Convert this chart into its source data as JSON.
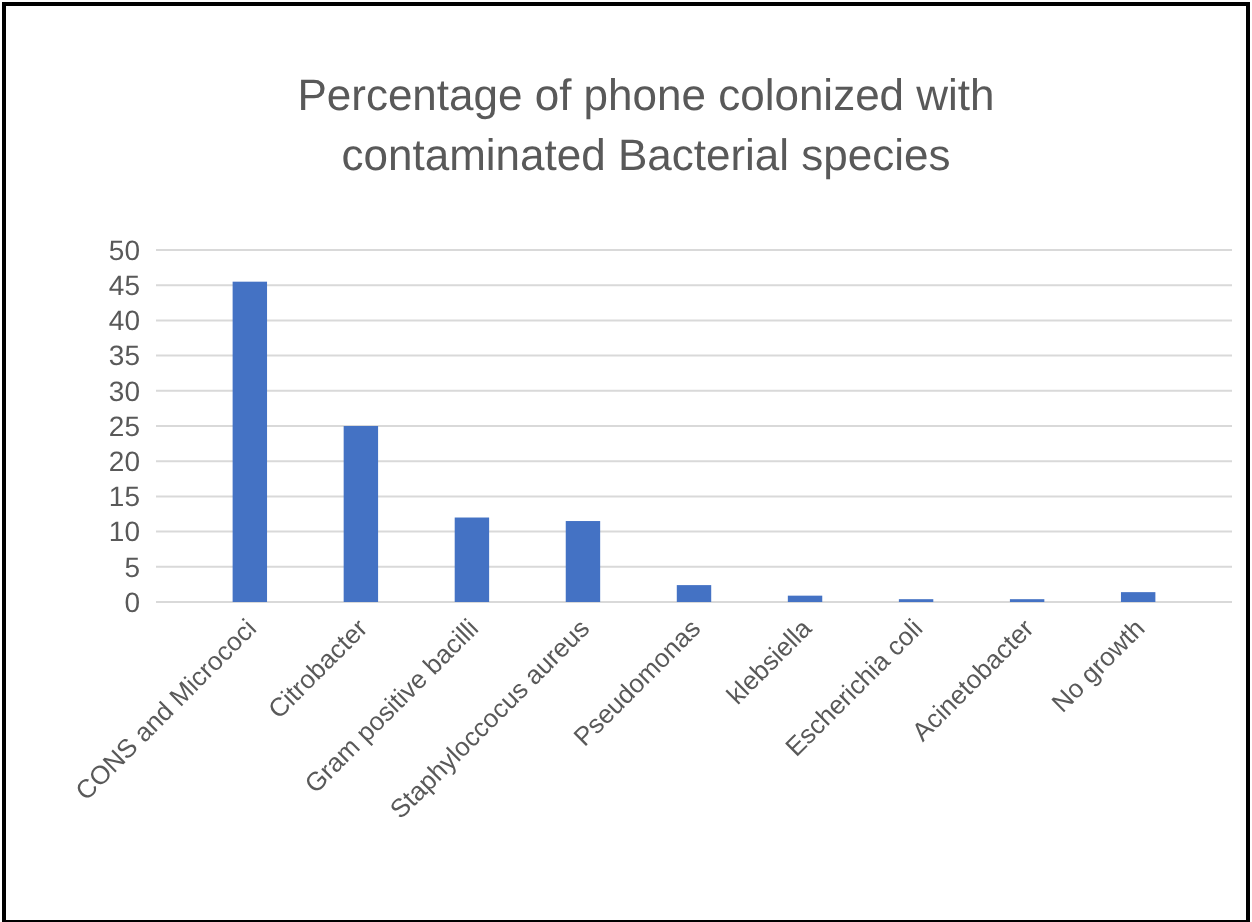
{
  "chart_data": {
    "type": "bar",
    "title": "Percentage of phone colonized with contaminated Bacterial species",
    "categories": [
      "CONS and Micrococi",
      "Citrobacter",
      "Gram positive bacilli",
      "Staphyloccocus aureus",
      "Pseudomonas",
      "klebsiella",
      "Escherichia coli",
      "Acinetobacter",
      "No growth"
    ],
    "values": [
      45.5,
      25,
      12,
      11.5,
      2.4,
      0.9,
      0.4,
      0.4,
      1.4
    ],
    "color": "#4472c4",
    "ylim": [
      0,
      50
    ],
    "yticks": [
      0,
      5,
      10,
      15,
      20,
      25,
      30,
      35,
      40,
      45,
      50
    ],
    "grid": "y"
  }
}
